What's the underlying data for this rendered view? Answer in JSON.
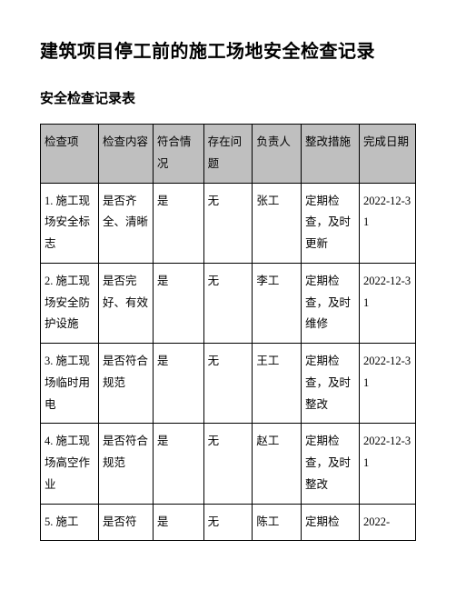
{
  "doc": {
    "title": "建筑项目停工前的施工场地安全检查记录",
    "subtitle": "安全检查记录表"
  },
  "table": {
    "headers": [
      "检查项",
      "检查内容",
      "符合情况",
      "存在问题",
      "负责人",
      "整改措施",
      "完成日期"
    ],
    "rows": [
      [
        "1. 施工现场安全标志",
        "是否齐全、清晰",
        "是",
        "无",
        "张工",
        "定期检查，及时更新",
        "2022-12-31"
      ],
      [
        "2. 施工现场安全防护设施",
        "是否完好、有效",
        "是",
        "无",
        "李工",
        "定期检查，及时维修",
        "2022-12-31"
      ],
      [
        "3. 施工现场临时用电",
        "是否符合规范",
        "是",
        "无",
        "王工",
        "定期检查，及时整改",
        "2022-12-31"
      ],
      [
        "4. 施工现场高空作业",
        "是否符合规范",
        "是",
        "无",
        "赵工",
        "定期检查，及时整改",
        "2022-12-31"
      ],
      [
        "5. 施工",
        "是否符",
        "是",
        "无",
        "陈工",
        "定期检",
        "2022-"
      ]
    ],
    "header_bg": "#bfbfbf",
    "border_color": "#000000",
    "font_size": 12.5,
    "line_height": 1.9
  }
}
